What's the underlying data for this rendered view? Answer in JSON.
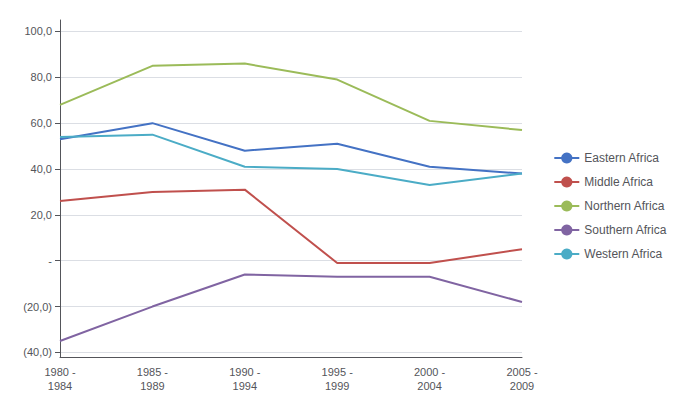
{
  "chart_data": {
    "type": "line",
    "categories": [
      "1980 -\n1984",
      "1985 -\n1989",
      "1990 -\n1994",
      "1995 -\n1999",
      "2000 -\n2004",
      "2005 -\n2009"
    ],
    "series": [
      {
        "name": "Eastern Africa",
        "color": "#4472C4",
        "values": [
          53,
          60,
          48,
          51,
          41,
          38
        ]
      },
      {
        "name": "Middle Africa",
        "color": "#C0504D",
        "values": [
          26,
          30,
          31,
          -1,
          -1,
          5
        ]
      },
      {
        "name": "Northern Africa",
        "color": "#9BBB59",
        "values": [
          68,
          85,
          86,
          79,
          61,
          57
        ]
      },
      {
        "name": "Southern Africa",
        "color": "#8064A2",
        "values": [
          -35,
          -20,
          -6,
          -7,
          -7,
          -18
        ]
      },
      {
        "name": "Western Africa",
        "color": "#4BACC6",
        "values": [
          54,
          55,
          41,
          40,
          33,
          38
        ]
      }
    ],
    "ylim": [
      -42,
      105
    ],
    "yticks": [
      {
        "value": -40,
        "label": "(40,0)"
      },
      {
        "value": -20,
        "label": "(20,0)"
      },
      {
        "value": 0,
        "label": "-"
      },
      {
        "value": 20,
        "label": "20,0"
      },
      {
        "value": 40,
        "label": "40,0"
      },
      {
        "value": 60,
        "label": "60,0"
      },
      {
        "value": 80,
        "label": "80,0"
      },
      {
        "value": 100,
        "label": "100,0"
      }
    ],
    "grid": true,
    "legend": "right"
  }
}
